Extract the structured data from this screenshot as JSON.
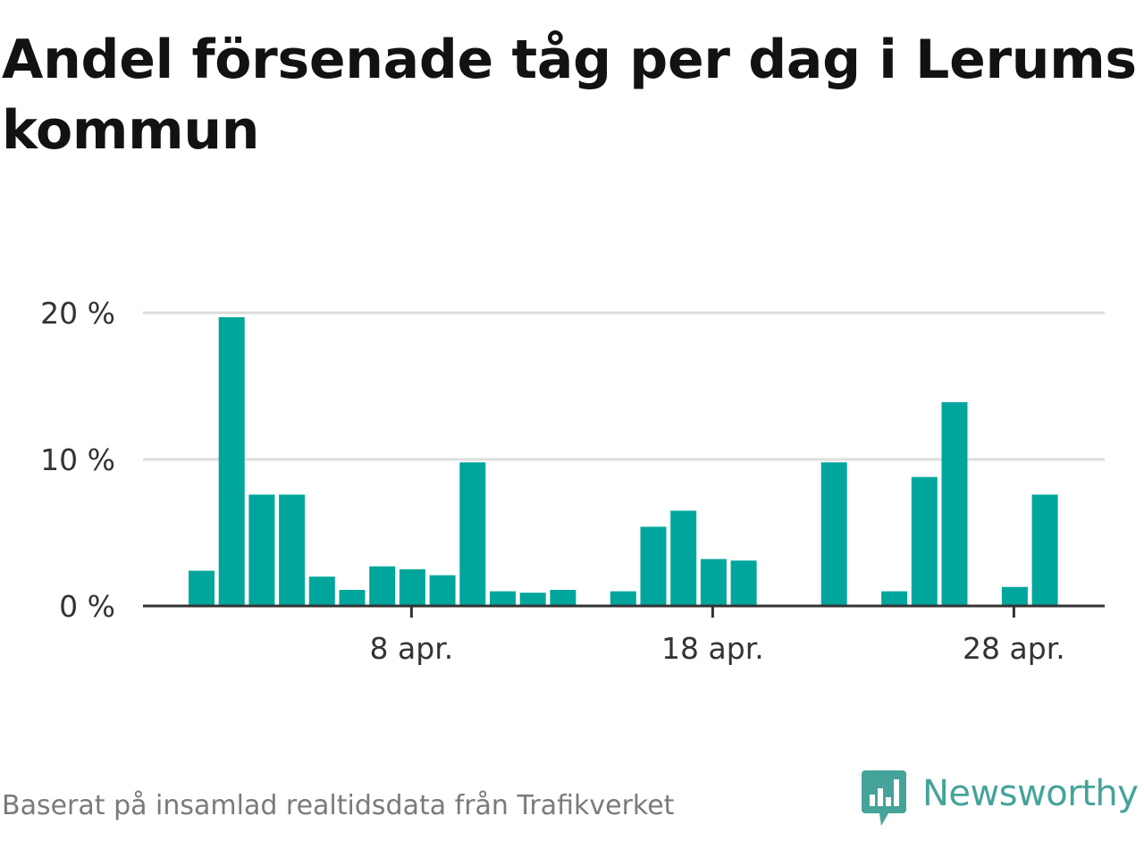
{
  "title": "Andel försenade tåg per dag i Lerums kommun",
  "source": "Baserat på insamlad realtidsdata från Trafikverket",
  "brand": {
    "name": "Newsworthy",
    "icon": "newsworthy-logo-icon"
  },
  "colors": {
    "bar": "#00a69c",
    "grid": "#dcdcdc",
    "axis": "#333333",
    "brand": "#45a39a"
  },
  "chart_data": {
    "type": "bar",
    "title": "Andel försenade tåg per dag i Lerums kommun",
    "xlabel": "",
    "ylabel": "",
    "unit": "%",
    "ylim": [
      0,
      20
    ],
    "y_ticks": [
      {
        "value": 0,
        "label": "0 %"
      },
      {
        "value": 10,
        "label": "10 %"
      },
      {
        "value": 20,
        "label": "20 %"
      }
    ],
    "x_ticks": [
      {
        "day": 8,
        "label": "8 apr."
      },
      {
        "day": 18,
        "label": "18 apr."
      },
      {
        "day": 28,
        "label": "28 apr."
      }
    ],
    "x_range": [
      0,
      32
    ],
    "grid": true,
    "categories": [
      "1 apr.",
      "2 apr.",
      "3 apr.",
      "4 apr.",
      "5 apr.",
      "6 apr.",
      "7 apr.",
      "8 apr.",
      "9 apr.",
      "10 apr.",
      "11 apr.",
      "12 apr.",
      "13 apr.",
      "14 apr.",
      "15 apr.",
      "16 apr.",
      "17 apr.",
      "18 apr.",
      "19 apr.",
      "20 apr.",
      "21 apr.",
      "22 apr.",
      "23 apr.",
      "24 apr.",
      "25 apr.",
      "26 apr.",
      "27 apr.",
      "28 apr.",
      "29 apr."
    ],
    "days": [
      1,
      2,
      3,
      4,
      5,
      6,
      7,
      8,
      9,
      10,
      11,
      12,
      13,
      14,
      15,
      16,
      17,
      18,
      19,
      20,
      21,
      22,
      23,
      24,
      25,
      26,
      27,
      28,
      29
    ],
    "values": [
      2.4,
      19.7,
      7.6,
      7.6,
      2.0,
      1.1,
      2.7,
      2.5,
      2.1,
      9.8,
      1.0,
      0.9,
      1.1,
      0,
      1.0,
      5.4,
      6.5,
      3.2,
      3.1,
      0,
      0,
      9.8,
      0,
      1.0,
      8.8,
      13.9,
      0,
      1.3,
      7.6
    ]
  }
}
